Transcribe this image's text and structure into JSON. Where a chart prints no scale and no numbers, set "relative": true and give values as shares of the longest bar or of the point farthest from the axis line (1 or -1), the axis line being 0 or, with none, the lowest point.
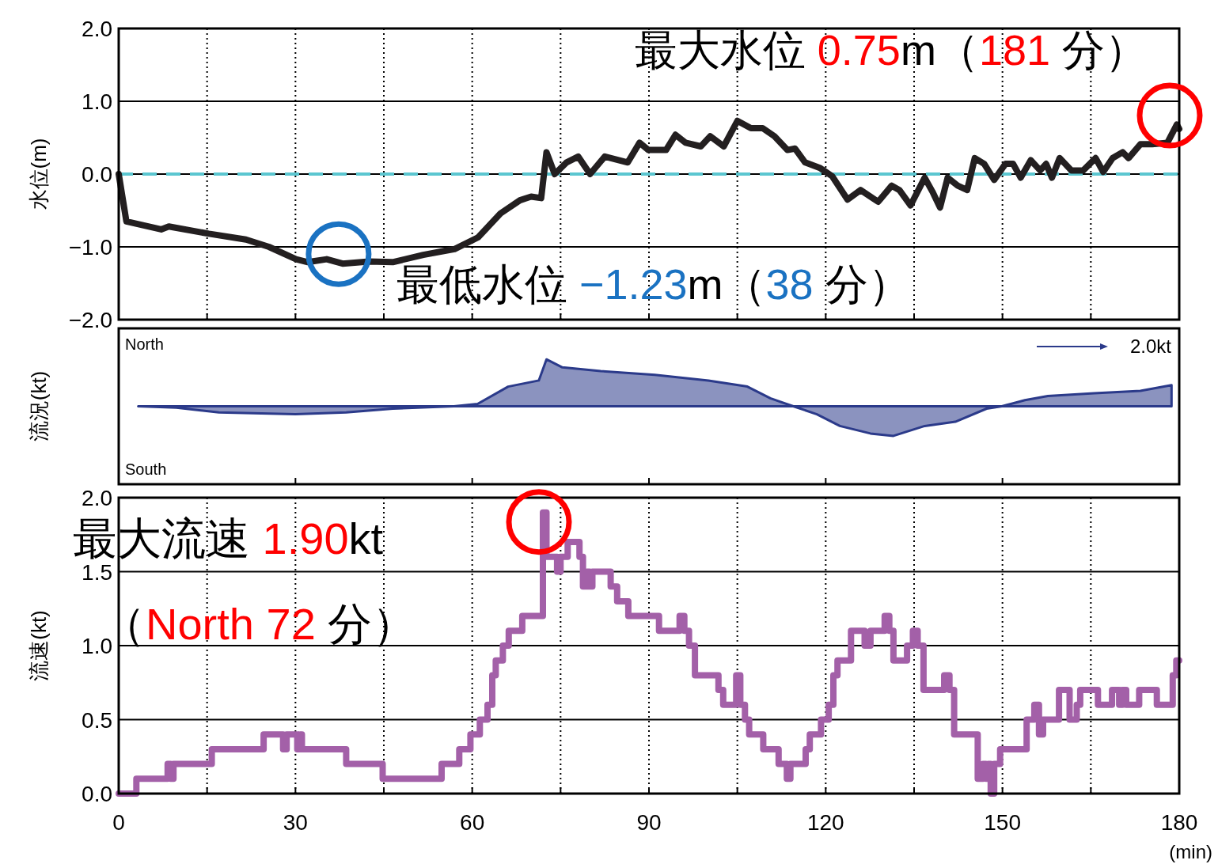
{
  "chart_data": [
    {
      "type": "line",
      "ylabel": "水位(m)",
      "xlim": [
        0,
        180
      ],
      "ylim": [
        -2,
        2
      ],
      "tick_labels": "y",
      "grid": true,
      "line_style": "solid",
      "xticks": [
        0,
        {
          "value": 15,
          "label": null
        },
        30,
        {
          "value": 45,
          "label": null
        },
        60,
        {
          "value": 75,
          "label": null
        },
        90,
        {
          "value": 105,
          "label": null
        },
        120,
        {
          "value": 135,
          "label": null
        },
        150,
        {
          "value": 165,
          "label": null
        },
        180
      ],
      "yticks": [
        {
          "value": -2,
          "label": "−2.0"
        },
        {
          "value": -1,
          "label": "−1.0"
        },
        {
          "value": 0,
          "label": "0.0"
        },
        {
          "value": 1,
          "label": "1.0"
        },
        {
          "value": 2,
          "label": "2.0"
        }
      ],
      "ref_lines": [
        {
          "axis": "y",
          "value": 0,
          "label": null,
          "color": "#5bc6d0",
          "line_style": "dashed"
        }
      ],
      "annotations": [
        "最大水位 0.75m（181 分）",
        {
          "text": "最低水位 −1.23m（38 分）",
          "x": 38,
          "y": -1.23
        }
      ],
      "series": [
        {
          "color": "#231f20",
          "x": [
            0,
            1.3,
            7.2,
            8.5,
            15.3,
            21.6,
            25.5,
            30.1,
            32.1,
            35.3,
            38,
            42.5,
            46.5,
            51.7,
            57,
            61,
            64.8,
            68.1,
            70,
            71.7,
            72.6,
            74,
            76,
            78,
            80,
            82.5,
            86.4,
            88.4,
            89.9,
            92.9,
            94.5,
            96.2,
            98.8,
            100.4,
            102.7,
            105,
            107.3,
            109.3,
            111.3,
            113.5,
            114.8,
            116.5,
            119.1,
            121.1,
            123.7,
            125.9,
            128.9,
            131.2,
            132.5,
            134.4,
            136.8,
            138.1,
            139.4,
            140.7,
            142.4,
            144,
            145.3,
            146.9,
            148.6,
            150.5,
            151.8,
            153.1,
            154.8,
            156.4,
            157.4,
            158.4,
            159.7,
            161.7,
            163.7,
            165.8,
            167.1,
            168.7,
            170.4,
            171.4,
            173.4,
            175.4,
            178,
            179.6,
            180
          ],
          "values": [
            0,
            -0.65,
            -0.76,
            -0.72,
            -0.82,
            -0.9,
            -1.0,
            -1.17,
            -1.21,
            -1.17,
            -1.23,
            -1.2,
            -1.21,
            -1.11,
            -1.03,
            -0.87,
            -0.54,
            -0.36,
            -0.31,
            -0.33,
            0.3,
            0,
            0.16,
            0.24,
            0,
            0.24,
            0.16,
            0.43,
            0.33,
            0.33,
            0.54,
            0.43,
            0.38,
            0.52,
            0.38,
            0.73,
            0.63,
            0.63,
            0.52,
            0.33,
            0.35,
            0.16,
            0.08,
            -0.03,
            -0.35,
            -0.22,
            -0.38,
            -0.16,
            -0.22,
            -0.43,
            -0.05,
            -0.24,
            -0.46,
            -0.05,
            -0.16,
            -0.22,
            0.22,
            0.14,
            -0.08,
            0.14,
            0.14,
            -0.05,
            0.19,
            0.05,
            0.14,
            -0.05,
            0.22,
            0.05,
            0.05,
            0.22,
            0.03,
            0.22,
            0.3,
            0.22,
            0.41,
            0.41,
            0.43,
            0.68,
            0.62
          ]
        }
      ]
    },
    {
      "type": "area",
      "relative": true,
      "ylabel": "流況(kt)",
      "xlim": [
        0,
        180
      ],
      "tick_labels": false,
      "xticks": [
        {
          "value": 30,
          "label": null
        },
        {
          "value": 60,
          "label": null
        },
        {
          "value": 90,
          "label": null
        },
        {
          "value": 120,
          "label": null
        },
        {
          "value": 150,
          "label": null
        }
      ],
      "annotations": [
        "North",
        "South",
        "2.0kt"
      ],
      "series": [
        {
          "color": "#2b3a8a",
          "x": [
            3.3,
            9.8,
            17,
            30,
            38.6,
            46.5,
            56.9,
            60.9,
            66.1,
            71.3,
            72.6,
            75.3,
            81.8,
            91,
            100.1,
            106.7,
            110.6,
            114.5,
            118.5,
            122.4,
            127.6,
            131.5,
            136.8,
            142,
            147.3,
            149.9,
            153.8,
            157.7,
            165.6,
            173.4,
            178.7
          ],
          "values": [
            0,
            -0.03,
            -0.13,
            -0.17,
            -0.13,
            -0.05,
            0,
            0.05,
            0.42,
            0.55,
            1,
            0.83,
            0.75,
            0.67,
            0.55,
            0.42,
            0.17,
            0,
            -0.17,
            -0.42,
            -0.58,
            -0.63,
            -0.42,
            -0.33,
            -0.05,
            0,
            0.13,
            0.22,
            0.28,
            0.33,
            0.45
          ]
        }
      ]
    },
    {
      "type": "step",
      "ylabel": "流速(kt)",
      "xlabel": "(min)",
      "xlim": [
        0,
        180
      ],
      "ylim": [
        0,
        2
      ],
      "grid": true,
      "line_style": "solid",
      "xticks": [
        0,
        {
          "value": 15,
          "label": null
        },
        30,
        {
          "value": 45,
          "label": null
        },
        60,
        {
          "value": 75,
          "label": null
        },
        90,
        {
          "value": 105,
          "label": null
        },
        120,
        {
          "value": 135,
          "label": null
        },
        150,
        {
          "value": 165,
          "label": null
        },
        180
      ],
      "yticks": [
        {
          "value": 0,
          "label": "0.0"
        },
        {
          "value": 0.5,
          "label": "0.5"
        },
        {
          "value": 1,
          "label": "1.0"
        },
        {
          "value": 1.5,
          "label": "1.5"
        },
        {
          "value": 2,
          "label": "2.0"
        }
      ],
      "annotations": [
        "最大流速 1.90kt",
        "（North 72 分）"
      ],
      "series": [
        {
          "color": "#a360a8",
          "x": [
            0,
            3,
            8.3,
            8.8,
            9.3,
            15.8,
            24.6,
            27.9,
            28.5,
            30.3,
            30.8,
            31.1,
            38.6,
            44.8,
            54.8,
            57.8,
            59.7,
            61.3,
            62.6,
            63.4,
            64,
            65.2,
            66.2,
            68.5,
            72,
            72.6,
            74.4,
            75,
            76.2,
            78.2,
            78.8,
            79.5,
            79.9,
            80.4,
            83.5,
            84.6,
            86.5,
            91.7,
            95.2,
            96,
            96.8,
            97.8,
            101.8,
            102.6,
            104.8,
            105.5,
            106.3,
            107,
            109.4,
            112,
            113.4,
            114,
            116.6,
            117.3,
            119.2,
            120.5,
            121.3,
            122,
            124.3,
            126.6,
            127.6,
            130,
            130.8,
            131.5,
            133.8,
            134.8,
            135.6,
            136.6,
            140.1,
            141,
            141.8,
            145.8,
            146.7,
            147.2,
            147.6,
            148,
            148.6,
            149.6,
            154.1,
            155.4,
            156.2,
            156.9,
            159.6,
            161.4,
            162.6,
            163.2,
            166.2,
            168.6,
            169.8,
            170.4,
            171,
            173.2,
            176.2,
            178.9,
            179.5,
            180
          ],
          "values": [
            0,
            0.1,
            0.2,
            0.1,
            0.2,
            0.3,
            0.4,
            0.3,
            0.4,
            0.3,
            0.4,
            0.3,
            0.2,
            0.1,
            0.2,
            0.3,
            0.4,
            0.5,
            0.6,
            0.8,
            0.9,
            1.0,
            1.1,
            1.2,
            1.9,
            1.6,
            1.5,
            1.6,
            1.7,
            1.6,
            1.4,
            1.5,
            1.4,
            1.5,
            1.4,
            1.3,
            1.2,
            1.1,
            1.2,
            1.1,
            1.0,
            0.8,
            0.7,
            0.6,
            0.8,
            0.6,
            0.5,
            0.4,
            0.3,
            0.2,
            0.1,
            0.2,
            0.3,
            0.4,
            0.5,
            0.6,
            0.8,
            0.9,
            1.1,
            1.0,
            1.1,
            1.2,
            1.1,
            0.9,
            1.0,
            1.1,
            1.0,
            0.7,
            0.8,
            0.7,
            0.4,
            0.1,
            0.2,
            0.1,
            0.2,
            0.0,
            0.2,
            0.3,
            0.5,
            0.6,
            0.4,
            0.5,
            0.7,
            0.5,
            0.6,
            0.7,
            0.6,
            0.7,
            0.6,
            0.7,
            0.6,
            0.7,
            0.6,
            0.8,
            0.9,
            0.9
          ]
        }
      ]
    }
  ]
}
